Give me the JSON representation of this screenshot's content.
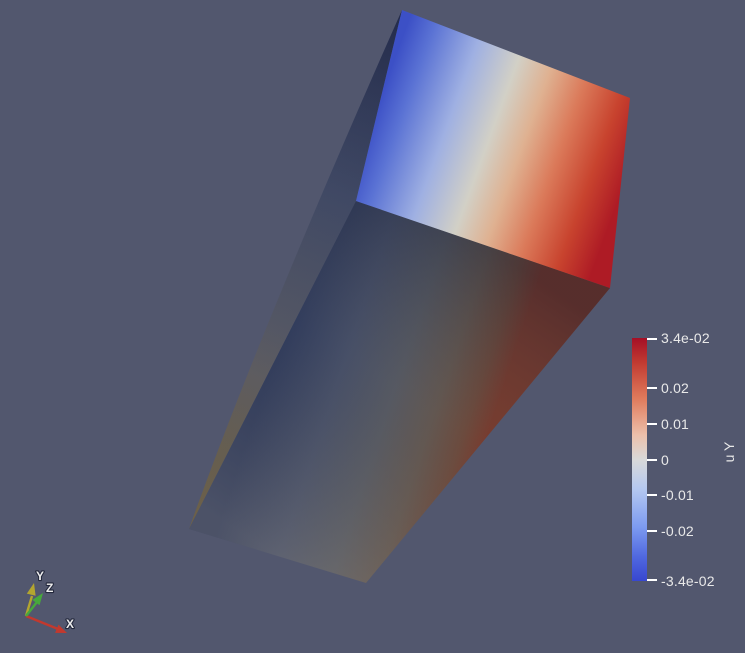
{
  "app": {
    "name": "3D render view",
    "background_color": "#52576e"
  },
  "chart_data": {
    "type": "3d-colormap-surface",
    "title": "u Y",
    "object": "deformed rectangular beam colored by displacement component u Y",
    "colormap_name": "Cool to Warm (diverging blue-white-red)",
    "scalar_range": [
      -0.034,
      0.034
    ],
    "legend_position": "right",
    "tick_labels": [
      "3.4e-02",
      "0.02",
      "0.01",
      "0",
      "-0.01",
      "-0.02",
      "-3.4e-02"
    ],
    "tick_values": [
      0.034,
      0.02,
      0.01,
      0,
      -0.01,
      -0.02,
      -0.034
    ]
  },
  "colorbar": {
    "title": "u Y",
    "range": [
      -0.034,
      0.034
    ],
    "label_color": "#e9e9e9",
    "ticks": [
      {
        "label": "3.4e-02",
        "value": 0.034
      },
      {
        "label": "0.02",
        "value": 0.02
      },
      {
        "label": "0.01",
        "value": 0.01
      },
      {
        "label": "0",
        "value": 0
      },
      {
        "label": "-0.01",
        "value": -0.01
      },
      {
        "label": "-0.02",
        "value": -0.02
      },
      {
        "label": "-3.4e-02",
        "value": -0.034
      }
    ],
    "colormap_stops": [
      {
        "at": 0.0,
        "color": "#a50f26"
      },
      {
        "at": 0.1,
        "color": "#c13a31"
      },
      {
        "at": 0.25,
        "color": "#e07b5c"
      },
      {
        "at": 0.4,
        "color": "#ecc0ab"
      },
      {
        "at": 0.5,
        "color": "#d9d9d9"
      },
      {
        "at": 0.62,
        "color": "#b5c8f0"
      },
      {
        "at": 0.78,
        "color": "#7c9af0"
      },
      {
        "at": 0.9,
        "color": "#5068e0"
      },
      {
        "at": 1.0,
        "color": "#3847d0"
      }
    ]
  },
  "scene": {
    "object": "deformed-beam",
    "faces": {
      "top": {
        "stops": [
          {
            "at": 0.0,
            "color": "#3c50c6"
          },
          {
            "at": 0.1,
            "color": "#5a72d4"
          },
          {
            "at": 0.28,
            "color": "#9fb0e2"
          },
          {
            "at": 0.45,
            "color": "#d2d0c6"
          },
          {
            "at": 0.58,
            "color": "#dfb191"
          },
          {
            "at": 0.72,
            "color": "#db7a5a"
          },
          {
            "at": 0.87,
            "color": "#c8432e"
          },
          {
            "at": 1.0,
            "color": "#ae1b25"
          }
        ]
      },
      "front": {
        "stops": [
          {
            "at": 0.0,
            "color": "#2e3a5c"
          },
          {
            "at": 0.3,
            "color": "#475069"
          },
          {
            "at": 0.55,
            "color": "#575a63"
          },
          {
            "at": 0.75,
            "color": "#645851"
          },
          {
            "at": 0.9,
            "color": "#6e4b3d"
          },
          {
            "at": 1.0,
            "color": "#7b3c2e"
          }
        ]
      },
      "front_shade": {
        "stops": [
          {
            "at": 0.0,
            "color": "rgba(10,16,40,0.32)"
          },
          {
            "at": 0.45,
            "color": "rgba(70,70,75,0.06)"
          },
          {
            "at": 1.0,
            "color": "rgba(160,150,135,0.26)"
          }
        ]
      },
      "left": {
        "stops": [
          {
            "at": 0.0,
            "color": "#232b4b"
          },
          {
            "at": 0.35,
            "color": "#3e4866"
          },
          {
            "at": 0.7,
            "color": "#585b68"
          },
          {
            "at": 1.0,
            "color": "#5f5c50"
          }
        ]
      },
      "left_rim": {
        "stops": [
          {
            "at": 0.0,
            "color": "rgba(120,95,50,0)"
          },
          {
            "at": 0.6,
            "color": "rgba(120,95,50,0.06)"
          },
          {
            "at": 0.85,
            "color": "rgba(125,98,52,0.30)"
          },
          {
            "at": 1.0,
            "color": "rgba(133,104,58,0.38)"
          }
        ]
      }
    }
  },
  "orientation_axes": {
    "axes": [
      {
        "label": "X",
        "color": "#c2392e"
      },
      {
        "label": "Y",
        "color": "#b3a52f"
      },
      {
        "label": "Z",
        "color": "#47a83c"
      }
    ]
  }
}
